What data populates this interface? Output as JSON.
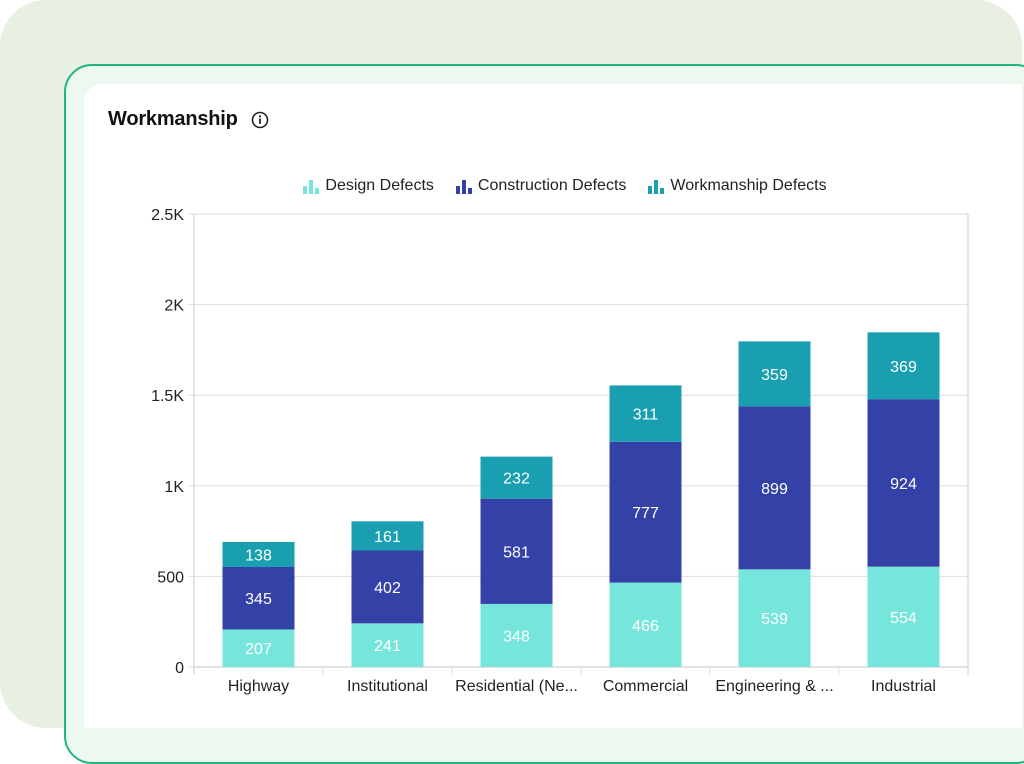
{
  "card": {
    "title": "Workmanship",
    "info_icon": "info-circle-icon"
  },
  "colors": {
    "design": "#76e5db",
    "construction": "#3442a8",
    "workmanship": "#1a9fb0",
    "frame_border": "#1fb57f",
    "background": "#e8efe3"
  },
  "chart_data": {
    "type": "bar",
    "stacked": true,
    "title": "Workmanship",
    "xlabel": "",
    "ylabel": "",
    "categories": [
      "Highway",
      "Institutional",
      "Residential (Ne...",
      "Commercial",
      "Engineering & ...",
      "Industrial"
    ],
    "series": [
      {
        "name": "Design Defects",
        "color": "#76e5db",
        "values": [
          207,
          241,
          348,
          466,
          539,
          554
        ]
      },
      {
        "name": "Construction Defects",
        "color": "#3442a8",
        "values": [
          345,
          402,
          581,
          777,
          899,
          924
        ]
      },
      {
        "name": "Workmanship Defects",
        "color": "#1a9fb0",
        "values": [
          138,
          161,
          232,
          311,
          359,
          369
        ]
      }
    ],
    "ylim": [
      0,
      2500
    ],
    "yticks": [
      0,
      500,
      1000,
      1500,
      2000,
      2500
    ],
    "ytick_labels": [
      "0",
      "500",
      "1K",
      "1.5K",
      "2K",
      "2.5K"
    ],
    "grid": true,
    "legend": "top-center",
    "data_labels": true
  }
}
